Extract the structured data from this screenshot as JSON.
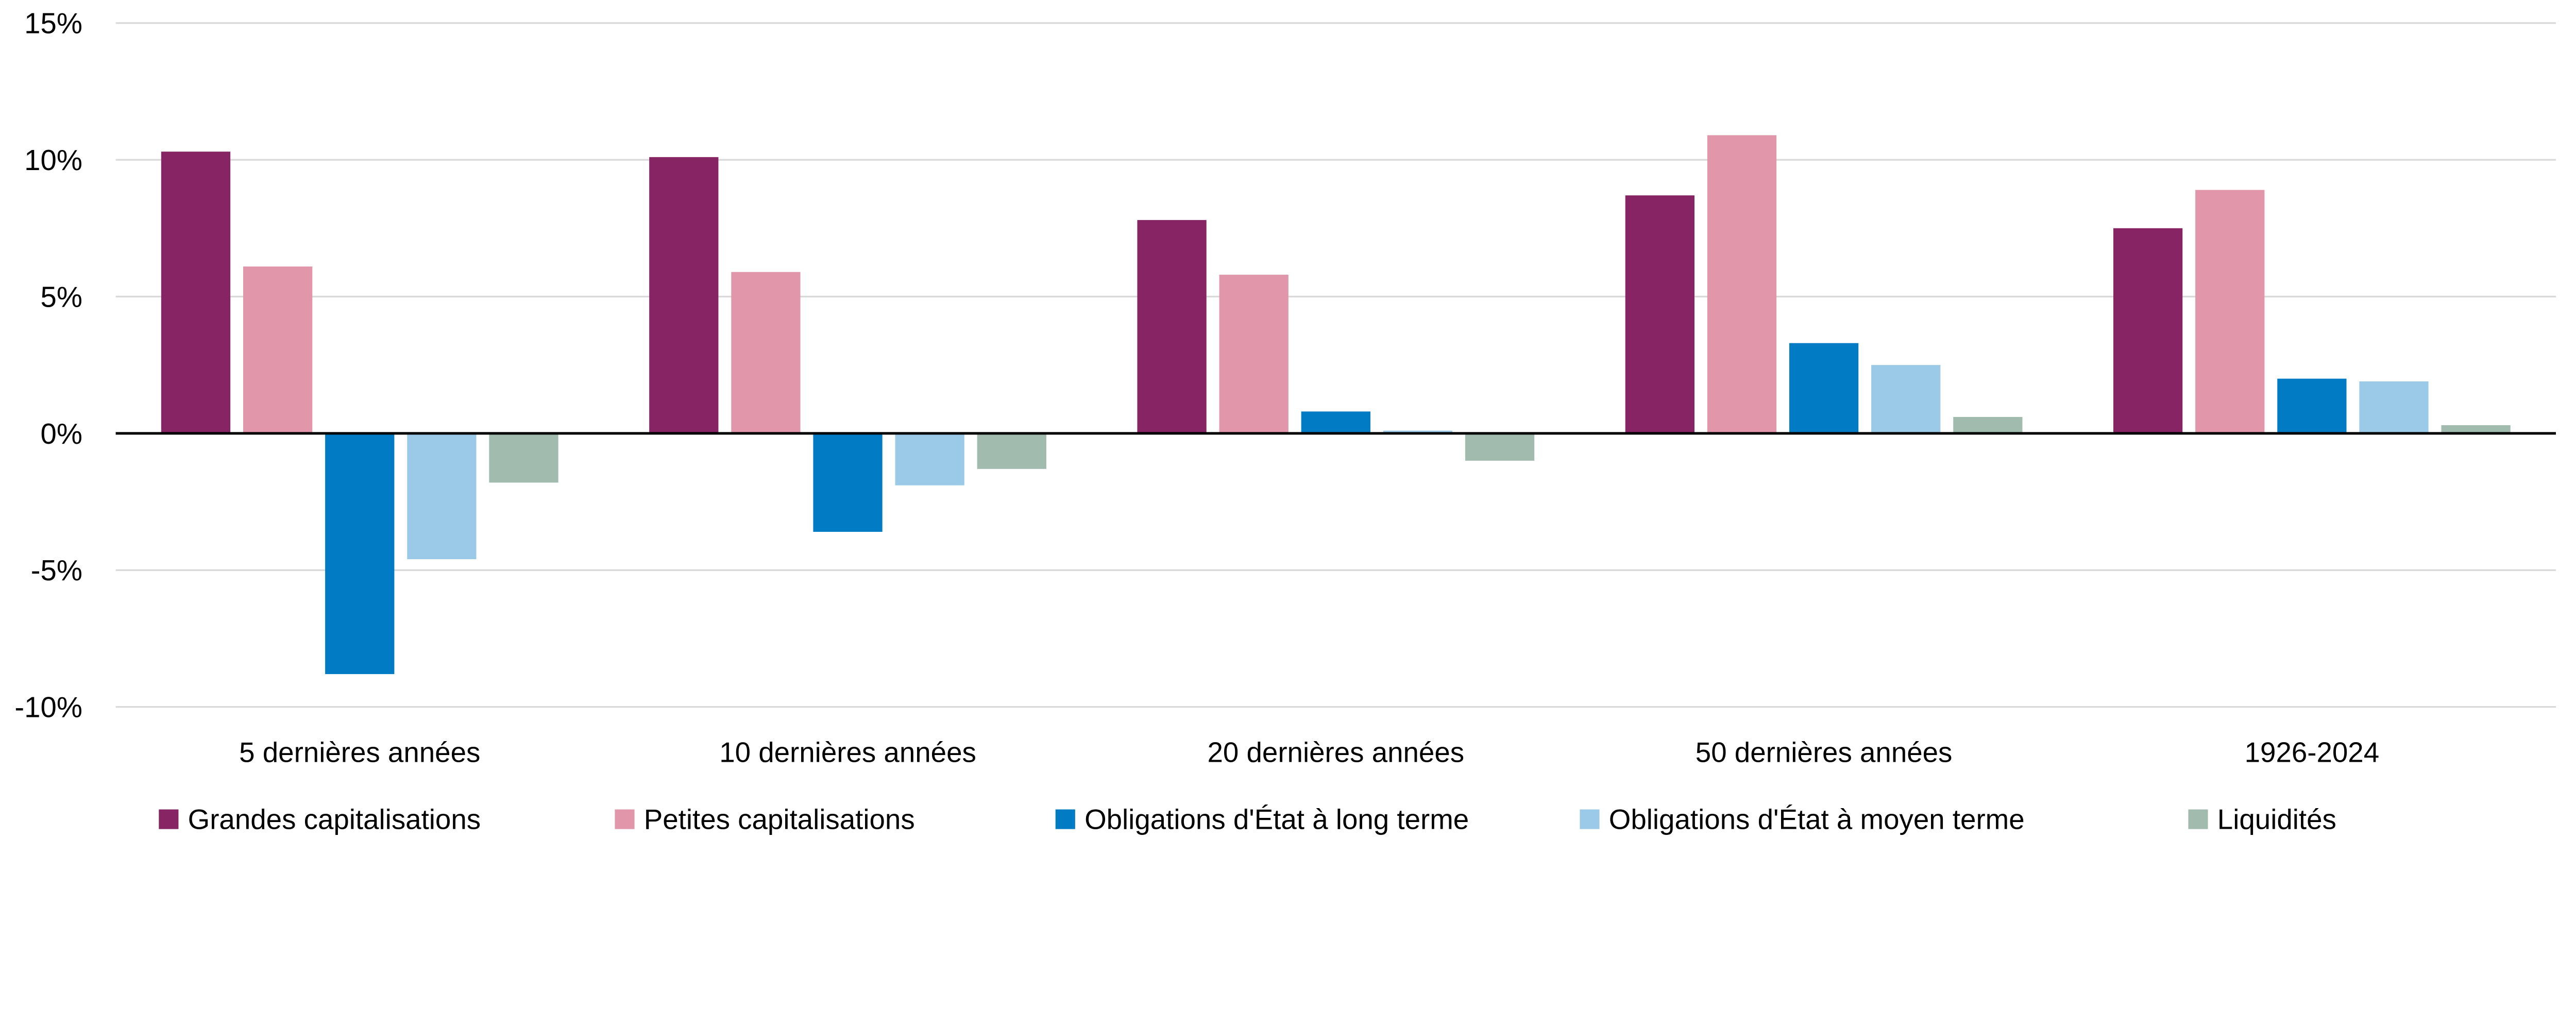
{
  "chart_data": {
    "type": "bar",
    "title": "",
    "xlabel": "",
    "ylabel": "",
    "categories": [
      "5 dernières années",
      "10 dernières années",
      "20 dernières années",
      "50 dernières années",
      "1926-2024"
    ],
    "ylim": [
      -10,
      15
    ],
    "yticks": [
      -10,
      -5,
      0,
      5,
      10,
      15
    ],
    "ytick_labels": [
      "-10%",
      "-5%",
      "0%",
      "5%",
      "10%",
      "15%"
    ],
    "grid": true,
    "legend_position": "bottom",
    "series": [
      {
        "name": "Grandes capitalisations",
        "color": "#872464",
        "values": [
          10.3,
          10.1,
          7.8,
          8.7,
          7.5
        ]
      },
      {
        "name": "Petites capitalisations",
        "color": "#E196AA",
        "values": [
          6.1,
          5.9,
          5.8,
          10.9,
          8.9
        ]
      },
      {
        "name": "Obligations d'État à long terme",
        "color": "#007BC4",
        "values": [
          -8.8,
          -3.6,
          0.8,
          3.3,
          2.0
        ]
      },
      {
        "name": "Obligations d'État à moyen terme",
        "color": "#9BCAE8",
        "values": [
          -4.6,
          -1.9,
          0.1,
          2.5,
          1.9
        ]
      },
      {
        "name": "Liquidités",
        "color": "#A1BCAF",
        "values": [
          -1.8,
          -1.3,
          -1.0,
          0.6,
          0.3
        ]
      }
    ]
  }
}
